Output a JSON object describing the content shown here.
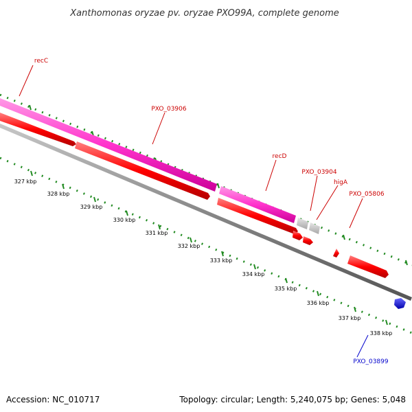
{
  "header": {
    "title": "Xanthomonas oryzae pv. oryzae PXO99A, complete genome"
  },
  "footer": {
    "accession": "Accession: NC_010717",
    "summary": "Topology: circular; Length: 5,240,075 bp; Genes: 5,048"
  },
  "scale": {
    "ticks": [
      "327 kbp",
      "328 kbp",
      "329 kbp",
      "330 kbp",
      "331 kbp",
      "332 kbp",
      "333 kbp",
      "334 kbp",
      "335 kbp",
      "336 kbp",
      "337 kbp",
      "338 kbp"
    ]
  },
  "genes": {
    "recC": "recC",
    "pxo_03906": "PXO_03906",
    "recD": "recD",
    "pxo_03904": "PXO_03904",
    "higA": "higA",
    "pxo_05806": "PXO_05806",
    "pxo_03899": "PXO_03899"
  },
  "colors": {
    "cds_forward": "#ff0000",
    "gene_track": "#ff33cc",
    "pseudo": "#c8c8c8",
    "reverse_cds": "#0000ee",
    "label_red": "#cc0000",
    "label_blue": "#0000cc",
    "backbone": "#888888",
    "ticks": "#228b22"
  }
}
